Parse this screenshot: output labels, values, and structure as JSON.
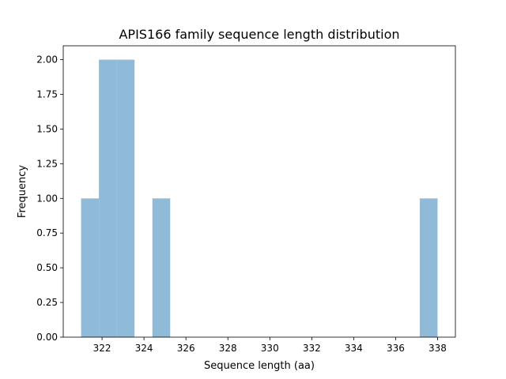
{
  "chart_data": {
    "type": "bar",
    "title": "APIS166 family sequence length distribution",
    "xlabel": "Sequence length (aa)",
    "ylabel": "Frequency",
    "bins": [
      {
        "x0": 321.0,
        "x1": 321.85,
        "count": 1
      },
      {
        "x0": 321.85,
        "x1": 322.7,
        "count": 2
      },
      {
        "x0": 322.7,
        "x1": 323.55,
        "count": 2
      },
      {
        "x0": 324.4,
        "x1": 325.25,
        "count": 1
      },
      {
        "x0": 337.15,
        "x1": 338.0,
        "count": 1
      }
    ],
    "xlim": [
      320.15,
      338.85
    ],
    "ylim": [
      0,
      2.1
    ],
    "xticks": [
      "322",
      "324",
      "326",
      "328",
      "330",
      "332",
      "334",
      "336",
      "338"
    ],
    "yticks": [
      "0.00",
      "0.25",
      "0.50",
      "0.75",
      "1.00",
      "1.25",
      "1.50",
      "1.75",
      "2.00"
    ],
    "grid": false,
    "bar_color": "#8fbbd9"
  }
}
